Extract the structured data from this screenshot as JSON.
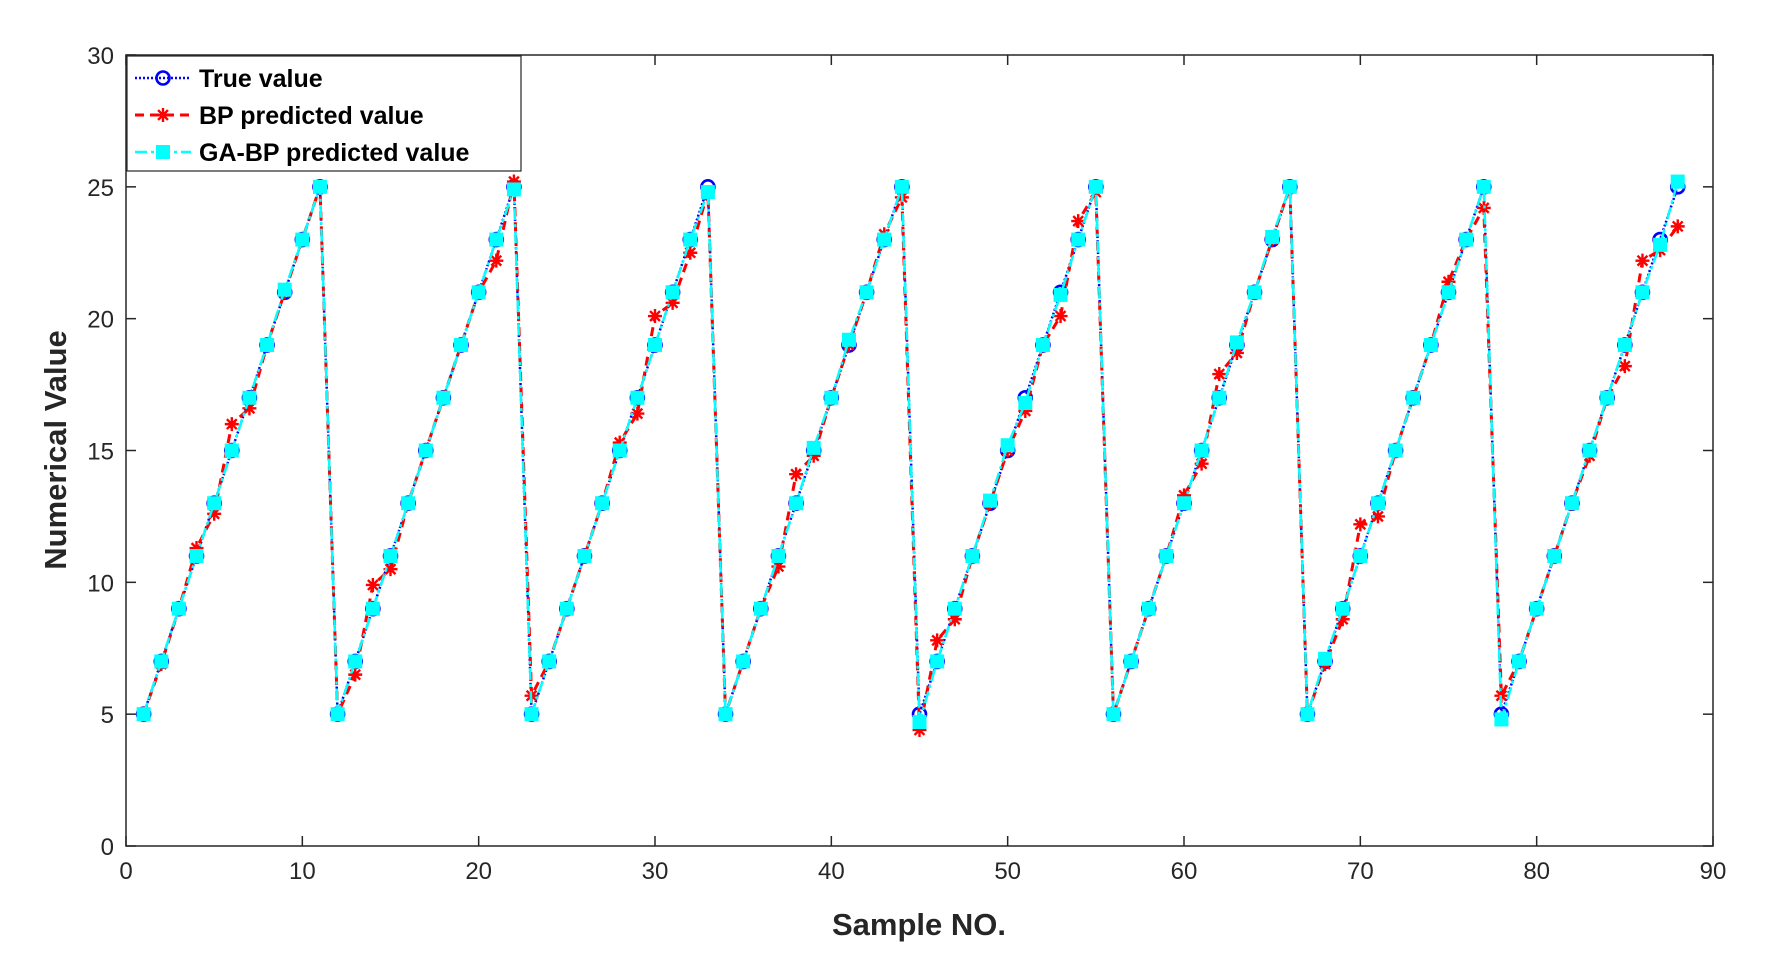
{
  "chart_data": {
    "type": "line",
    "title": "",
    "xlabel": "Sample NO.",
    "ylabel": "Numerical Value",
    "xlim": [
      0,
      90
    ],
    "ylim": [
      0,
      30
    ],
    "xticks": [
      0,
      10,
      20,
      30,
      40,
      50,
      60,
      70,
      80,
      90
    ],
    "yticks": [
      0,
      5,
      10,
      15,
      20,
      25,
      30
    ],
    "grid": false,
    "legend_position": "top-left",
    "x": [
      1,
      2,
      3,
      4,
      5,
      6,
      7,
      8,
      9,
      10,
      11,
      12,
      13,
      14,
      15,
      16,
      17,
      18,
      19,
      20,
      21,
      22,
      23,
      24,
      25,
      26,
      27,
      28,
      29,
      30,
      31,
      32,
      33,
      34,
      35,
      36,
      37,
      38,
      39,
      40,
      41,
      42,
      43,
      44,
      45,
      46,
      47,
      48,
      49,
      50,
      51,
      52,
      53,
      54,
      55,
      56,
      57,
      58,
      59,
      60,
      61,
      62,
      63,
      64,
      65,
      66,
      67,
      68,
      69,
      70,
      71,
      72,
      73,
      74,
      75,
      76,
      77,
      78,
      79,
      80,
      81,
      82,
      83,
      84,
      85,
      86,
      87,
      88
    ],
    "series": [
      {
        "name": "True value",
        "color": "#0000ff",
        "marker": "circle",
        "line_style": "dotted",
        "values": [
          5,
          7,
          9,
          11,
          13,
          15,
          17,
          19,
          21,
          23,
          25,
          5,
          7,
          9,
          11,
          13,
          15,
          17,
          19,
          21,
          23,
          25,
          5,
          7,
          9,
          11,
          13,
          15,
          17,
          19,
          21,
          23,
          25,
          5,
          7,
          9,
          11,
          13,
          15,
          17,
          19,
          21,
          23,
          25,
          5,
          7,
          9,
          11,
          13,
          15,
          17,
          19,
          21,
          23,
          25,
          5,
          7,
          9,
          11,
          13,
          15,
          17,
          19,
          21,
          23,
          25,
          5,
          7,
          9,
          11,
          13,
          15,
          17,
          19,
          21,
          23,
          25,
          5,
          7,
          9,
          11,
          13,
          15,
          17,
          19,
          21,
          23,
          25
        ]
      },
      {
        "name": "BP predicted value",
        "color": "#ff0000",
        "marker": "asterisk",
        "line_style": "dashed",
        "values": [
          5,
          6.9,
          9,
          11.3,
          12.6,
          16,
          16.6,
          19,
          21,
          23,
          25,
          5,
          6.5,
          9.9,
          10.5,
          13,
          15,
          17,
          19,
          21,
          22.2,
          25.2,
          5.7,
          7,
          9,
          11,
          13,
          15.3,
          16.4,
          20.1,
          20.6,
          22.5,
          24.8,
          5,
          7,
          9,
          10.6,
          14.1,
          14.8,
          17,
          19,
          21,
          23.2,
          24.6,
          4.4,
          7.8,
          8.6,
          11,
          13,
          15,
          16.5,
          19,
          20.1,
          23.7,
          24.8,
          5,
          7,
          9,
          11,
          13.3,
          14.5,
          17.9,
          18.7,
          21,
          23,
          25,
          5,
          6.9,
          8.6,
          12.2,
          12.5,
          15,
          17,
          19,
          21.4,
          23,
          24.2,
          5.7,
          7,
          9,
          11,
          13,
          14.8,
          17,
          18.2,
          22.2,
          22.6,
          23.5
        ]
      },
      {
        "name": "GA-BP predicted value",
        "color": "#00ffff",
        "marker": "square",
        "line_style": "dash-dot",
        "values": [
          5,
          7,
          9,
          11,
          13,
          15,
          17,
          19,
          21.1,
          23,
          25,
          5,
          7,
          9,
          11,
          13,
          15,
          17,
          19,
          21,
          23,
          24.9,
          5,
          7,
          9,
          11,
          13,
          15,
          17,
          19,
          21,
          23,
          24.8,
          5,
          7,
          9,
          11,
          13,
          15.1,
          17,
          19.2,
          21,
          23,
          25,
          4.7,
          7,
          9,
          11,
          13.1,
          15.2,
          16.8,
          19,
          20.9,
          23,
          25,
          5,
          7,
          9,
          11,
          13,
          15,
          17,
          19.1,
          21,
          23.1,
          25,
          5,
          7.1,
          9,
          11,
          13,
          15,
          17,
          19,
          21,
          23,
          25,
          4.8,
          7,
          9,
          11,
          13,
          15,
          17,
          19,
          21,
          22.8,
          25.2
        ]
      }
    ]
  }
}
